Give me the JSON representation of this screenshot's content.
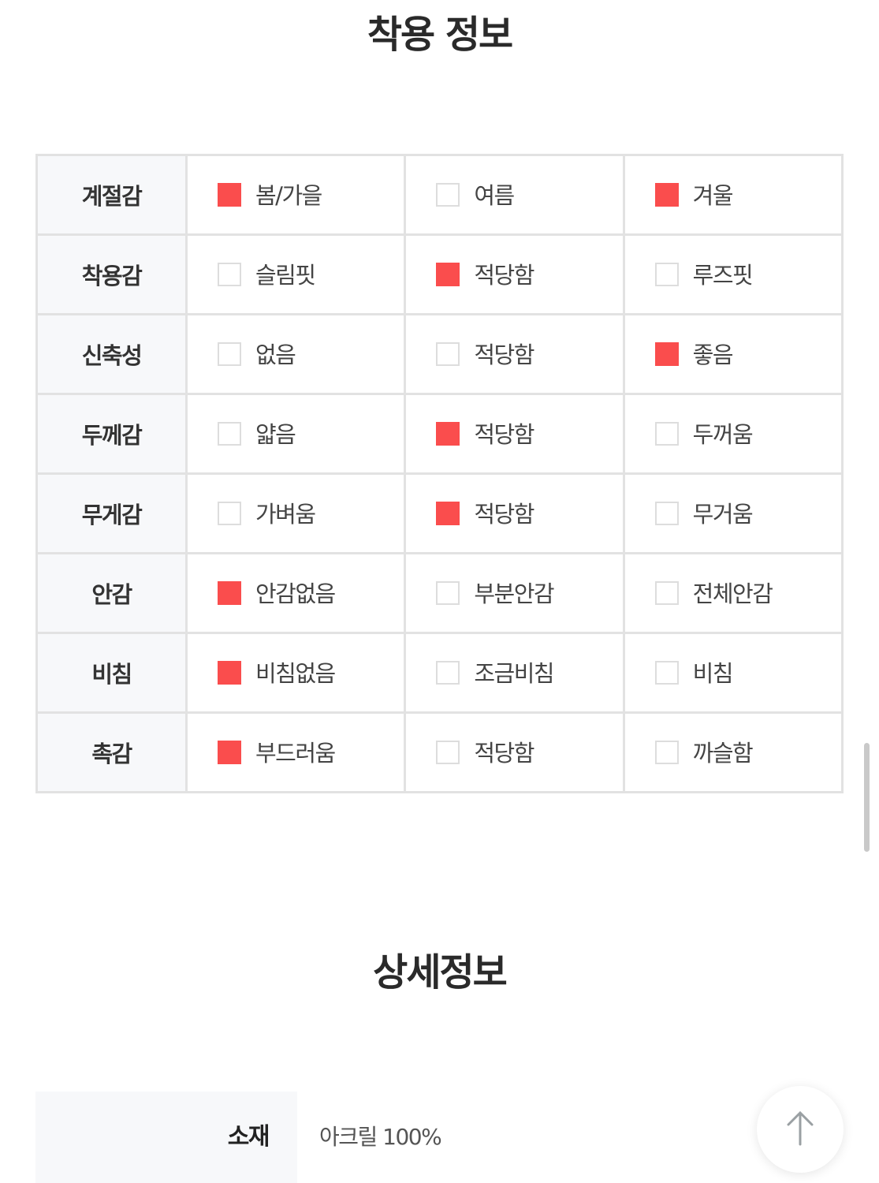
{
  "fit_info": {
    "title": "착용 정보",
    "rows": [
      {
        "label": "계절감",
        "options": [
          {
            "text": "봄/가을",
            "checked": true
          },
          {
            "text": "여름",
            "checked": false
          },
          {
            "text": "겨울",
            "checked": true
          }
        ]
      },
      {
        "label": "착용감",
        "options": [
          {
            "text": "슬림핏",
            "checked": false
          },
          {
            "text": "적당함",
            "checked": true
          },
          {
            "text": "루즈핏",
            "checked": false
          }
        ]
      },
      {
        "label": "신축성",
        "options": [
          {
            "text": "없음",
            "checked": false
          },
          {
            "text": "적당함",
            "checked": false
          },
          {
            "text": "좋음",
            "checked": true
          }
        ]
      },
      {
        "label": "두께감",
        "options": [
          {
            "text": "얇음",
            "checked": false
          },
          {
            "text": "적당함",
            "checked": true
          },
          {
            "text": "두꺼움",
            "checked": false
          }
        ]
      },
      {
        "label": "무게감",
        "options": [
          {
            "text": "가벼움",
            "checked": false
          },
          {
            "text": "적당함",
            "checked": true
          },
          {
            "text": "무거움",
            "checked": false
          }
        ]
      },
      {
        "label": "안감",
        "options": [
          {
            "text": "안감없음",
            "checked": true
          },
          {
            "text": "부분안감",
            "checked": false
          },
          {
            "text": "전체안감",
            "checked": false
          }
        ]
      },
      {
        "label": "비침",
        "options": [
          {
            "text": "비침없음",
            "checked": true
          },
          {
            "text": "조금비침",
            "checked": false
          },
          {
            "text": "비침",
            "checked": false
          }
        ]
      },
      {
        "label": "촉감",
        "options": [
          {
            "text": "부드러움",
            "checked": true
          },
          {
            "text": "적당함",
            "checked": false
          },
          {
            "text": "까슬함",
            "checked": false
          }
        ]
      }
    ],
    "checked_color": "#fa4d4d"
  },
  "details": {
    "title": "상세정보",
    "items": [
      {
        "key": "소재",
        "value": "아크릴 100%"
      }
    ]
  },
  "scroll_top_button": {
    "icon": "arrow-up-icon"
  }
}
